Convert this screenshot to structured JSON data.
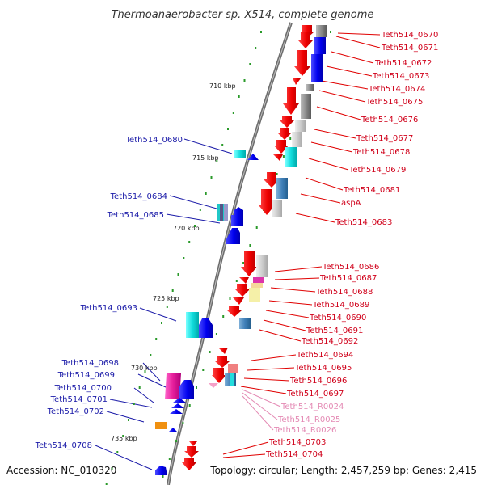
{
  "title": "Thermoanaerobacter sp. X514, complete genome",
  "footer": {
    "accession": "Accession: NC_010320",
    "summary": "Topology: circular; Length: 2,457,259 bp; Genes: 2,415"
  },
  "scale_labels": [
    "710 kbp",
    "715 kbp",
    "720 kbp",
    "725 kbp",
    "730 kbp",
    "735 kbp"
  ],
  "colors": {
    "label_red": "#d0001a",
    "label_blue": "#1a1aa8",
    "label_pink": "#e48ab4",
    "backbone": "#777777",
    "tick": "#2a9a2a"
  },
  "genes": [
    {
      "name": "Teth514_0670",
      "side": "right",
      "color": "label_red"
    },
    {
      "name": "Teth514_0671",
      "side": "right",
      "color": "label_red"
    },
    {
      "name": "Teth514_0672",
      "side": "right",
      "color": "label_red"
    },
    {
      "name": "Teth514_0673",
      "side": "right",
      "color": "label_red"
    },
    {
      "name": "Teth514_0674",
      "side": "right",
      "color": "label_red"
    },
    {
      "name": "Teth514_0675",
      "side": "right",
      "color": "label_red"
    },
    {
      "name": "Teth514_0676",
      "side": "right",
      "color": "label_red"
    },
    {
      "name": "Teth514_0677",
      "side": "right",
      "color": "label_red"
    },
    {
      "name": "Teth514_0678",
      "side": "right",
      "color": "label_red"
    },
    {
      "name": "Teth514_0679",
      "side": "right",
      "color": "label_red"
    },
    {
      "name": "Teth514_0681",
      "side": "right",
      "color": "label_red"
    },
    {
      "name": "aspA",
      "side": "right",
      "color": "label_red"
    },
    {
      "name": "Teth514_0683",
      "side": "right",
      "color": "label_red"
    },
    {
      "name": "Teth514_0686",
      "side": "right",
      "color": "label_red"
    },
    {
      "name": "Teth514_0687",
      "side": "right",
      "color": "label_red"
    },
    {
      "name": "Teth514_0688",
      "side": "right",
      "color": "label_red"
    },
    {
      "name": "Teth514_0689",
      "side": "right",
      "color": "label_red"
    },
    {
      "name": "Teth514_0690",
      "side": "right",
      "color": "label_red"
    },
    {
      "name": "Teth514_0691",
      "side": "right",
      "color": "label_red"
    },
    {
      "name": "Teth514_0692",
      "side": "right",
      "color": "label_red"
    },
    {
      "name": "Teth514_0694",
      "side": "right",
      "color": "label_red"
    },
    {
      "name": "Teth514_0695",
      "side": "right",
      "color": "label_red"
    },
    {
      "name": "Teth514_0696",
      "side": "right",
      "color": "label_red"
    },
    {
      "name": "Teth514_0697",
      "side": "right",
      "color": "label_red"
    },
    {
      "name": "Teth514_R0024",
      "side": "right",
      "color": "label_pink"
    },
    {
      "name": "Teth514_R0025",
      "side": "right",
      "color": "label_pink"
    },
    {
      "name": "Teth514_R0026",
      "side": "right",
      "color": "label_pink"
    },
    {
      "name": "Teth514_0703",
      "side": "right",
      "color": "label_red"
    },
    {
      "name": "Teth514_0704",
      "side": "right",
      "color": "label_red"
    },
    {
      "name": "Teth514_0680",
      "side": "left",
      "color": "label_blue"
    },
    {
      "name": "Teth514_0684",
      "side": "left",
      "color": "label_blue"
    },
    {
      "name": "Teth514_0685",
      "side": "left",
      "color": "label_blue"
    },
    {
      "name": "Teth514_0693",
      "side": "left",
      "color": "label_blue"
    },
    {
      "name": "Teth514_0698",
      "side": "left",
      "color": "label_blue"
    },
    {
      "name": "Teth514_0699",
      "side": "left",
      "color": "label_blue"
    },
    {
      "name": "Teth514_0700",
      "side": "left",
      "color": "label_blue"
    },
    {
      "name": "Teth514_0701",
      "side": "left",
      "color": "label_blue"
    },
    {
      "name": "Teth514_0702",
      "side": "left",
      "color": "label_blue"
    },
    {
      "name": "Teth514_0708",
      "side": "left",
      "color": "label_blue"
    }
  ]
}
